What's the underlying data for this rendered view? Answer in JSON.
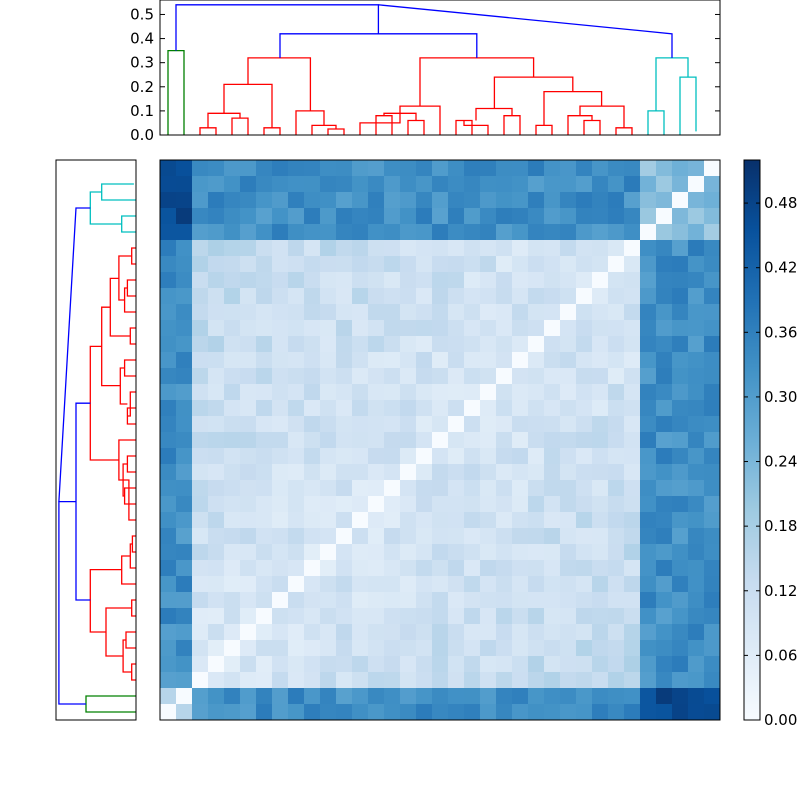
{
  "colors": {
    "cluster_a": "#ff0000",
    "cluster_b": "#00bfbf",
    "cluster_c": "#008000",
    "root_link": "#0000ff",
    "heatmap_low": "#f7fbff",
    "heatmap_high": "#08306b"
  },
  "chart_data": [
    {
      "type": "dendrogram",
      "orientation": "top",
      "title": "",
      "ylim": [
        0,
        0.56
      ],
      "yticks": [
        "0.0",
        "0.1",
        "0.2",
        "0.3",
        "0.4",
        "0.5"
      ],
      "leaf_count": 35,
      "clusters": [
        {
          "name": "green",
          "leaves": [
            0,
            1
          ],
          "merge_height": 0.35
        },
        {
          "name": "red",
          "leaves": [
            2,
            29
          ],
          "merge_height": 0.32
        },
        {
          "name": "cyan",
          "leaves": [
            30,
            34
          ],
          "merge_height": 0.32
        }
      ],
      "links": [
        {
          "x": [
            0.5,
            0.5,
            1.5,
            1.5
          ],
          "y": [
            0,
            0.35,
            0.35,
            0
          ],
          "color": "cluster_c"
        },
        {
          "x": [
            2.5,
            2.5,
            3.5,
            3.5
          ],
          "y": [
            0,
            0.03,
            0.03,
            0
          ],
          "color": "cluster_a"
        },
        {
          "x": [
            4.5,
            4.5,
            5.5,
            5.5
          ],
          "y": [
            0,
            0.07,
            0.07,
            0
          ],
          "color": "cluster_a"
        },
        {
          "x": [
            3.0,
            3.0,
            5.0,
            5.0
          ],
          "y": [
            0.03,
            0.09,
            0.09,
            0.07
          ],
          "color": "cluster_a"
        },
        {
          "x": [
            6.5,
            6.5,
            7.5,
            7.5
          ],
          "y": [
            0,
            0.03,
            0.03,
            0
          ],
          "color": "cluster_a"
        },
        {
          "x": [
            4.0,
            4.0,
            7.0,
            7.0
          ],
          "y": [
            0.09,
            0.21,
            0.21,
            0.03
          ],
          "color": "cluster_a"
        },
        {
          "x": [
            10.5,
            10.5,
            11.5,
            11.5
          ],
          "y": [
            0,
            0.025,
            0.025,
            0
          ],
          "color": "cluster_a"
        },
        {
          "x": [
            9.5,
            9.5,
            11.0,
            11.0
          ],
          "y": [
            0,
            0.04,
            0.04,
            0.025
          ],
          "color": "cluster_a"
        },
        {
          "x": [
            8.5,
            8.5,
            10.25,
            10.25
          ],
          "y": [
            0,
            0.1,
            0.1,
            0.04
          ],
          "color": "cluster_a"
        },
        {
          "x": [
            5.5,
            5.5,
            9.4,
            9.4
          ],
          "y": [
            0.21,
            0.32,
            0.32,
            0.1
          ],
          "color": "cluster_a"
        },
        {
          "x": [
            13.5,
            13.5,
            14.5,
            14.5
          ],
          "y": [
            0,
            0.08,
            0.08,
            0
          ],
          "color": "cluster_a"
        },
        {
          "x": [
            15.5,
            15.5,
            16.5,
            16.5
          ],
          "y": [
            0,
            0.06,
            0.06,
            0
          ],
          "color": "cluster_a"
        },
        {
          "x": [
            14.0,
            14.0,
            16.0,
            16.0
          ],
          "y": [
            0.08,
            0.09,
            0.09,
            0.06
          ],
          "color": "cluster_a"
        },
        {
          "x": [
            12.5,
            12.5,
            15.0,
            15.0
          ],
          "y": [
            0,
            0.05,
            0.05,
            0.09
          ],
          "color": "cluster_a"
        },
        {
          "x": [
            17.5,
            17.5,
            15.0,
            15.0
          ],
          "y": [
            0,
            0.12,
            0.12,
            0.09
          ],
          "color": "cluster_a"
        },
        {
          "x": [
            18.5,
            18.5,
            19.5,
            19.5
          ],
          "y": [
            0,
            0.06,
            0.06,
            0
          ],
          "color": "cluster_a"
        },
        {
          "x": [
            19.0,
            19.0,
            20.5,
            20.5
          ],
          "y": [
            0.06,
            0.04,
            0.04,
            0
          ],
          "color": "cluster_a"
        },
        {
          "x": [
            21.5,
            21.5,
            22.5,
            22.5
          ],
          "y": [
            0,
            0.08,
            0.08,
            0
          ],
          "color": "cluster_a"
        },
        {
          "x": [
            19.75,
            19.75,
            22.0,
            22.0
          ],
          "y": [
            0.06,
            0.11,
            0.11,
            0.08
          ],
          "color": "cluster_a"
        },
        {
          "x": [
            23.5,
            23.5,
            24.5,
            24.5
          ],
          "y": [
            0,
            0.04,
            0.04,
            0
          ],
          "color": "cluster_a"
        },
        {
          "x": [
            26.5,
            26.5,
            27.5,
            27.5
          ],
          "y": [
            0,
            0.06,
            0.06,
            0
          ],
          "color": "cluster_a"
        },
        {
          "x": [
            25.5,
            25.5,
            27.0,
            27.0
          ],
          "y": [
            0,
            0.08,
            0.08,
            0.06
          ],
          "color": "cluster_a"
        },
        {
          "x": [
            28.5,
            28.5,
            29.5,
            29.5
          ],
          "y": [
            0,
            0.03,
            0.03,
            0
          ],
          "color": "cluster_a"
        },
        {
          "x": [
            26.25,
            26.25,
            29.0,
            29.0
          ],
          "y": [
            0.08,
            0.12,
            0.12,
            0.03
          ],
          "color": "cluster_a"
        },
        {
          "x": [
            24.0,
            24.0,
            27.6,
            27.6
          ],
          "y": [
            0.04,
            0.18,
            0.18,
            0.12
          ],
          "color": "cluster_a"
        },
        {
          "x": [
            20.9,
            20.9,
            25.8,
            25.8
          ],
          "y": [
            0.11,
            0.24,
            0.24,
            0.18
          ],
          "color": "cluster_a"
        },
        {
          "x": [
            16.25,
            16.25,
            23.35,
            23.35
          ],
          "y": [
            0.12,
            0.32,
            0.32,
            0.24
          ],
          "color": "cluster_a"
        },
        {
          "x": [
            30.5,
            30.5,
            31.5,
            31.5
          ],
          "y": [
            0,
            0.1,
            0.1,
            0
          ],
          "color": "cluster_b"
        },
        {
          "x": [
            32.5,
            32.5,
            33.5,
            33.5
          ],
          "y": [
            0,
            0.24,
            0.24,
            0.015
          ],
          "color": "cluster_b"
        },
        {
          "x": [
            31.0,
            31.0,
            33.0,
            33.0
          ],
          "y": [
            0.1,
            0.32,
            0.32,
            0.24
          ],
          "color": "cluster_b"
        },
        {
          "x": [
            7.5,
            7.5,
            19.8,
            19.8
          ],
          "y": [
            0.32,
            0.42,
            0.42,
            0.32
          ],
          "color": "root_link"
        },
        {
          "x": [
            1.0,
            1.0,
            13.65,
            13.65
          ],
          "y": [
            0.35,
            0.54,
            0.54,
            0.42
          ],
          "color": "root_link"
        },
        {
          "x": [
            13.65,
            13.65,
            32.0,
            32.0
          ],
          "y": [
            0.54,
            0.54,
            0.42,
            0.32
          ],
          "color": "root_link"
        }
      ]
    },
    {
      "type": "heatmap",
      "title": "",
      "rows": 35,
      "cols": 35,
      "vmin": 0.0,
      "vmax": 0.52,
      "colormap": "Blues",
      "row_order": "matches left dendrogram leaves, top to bottom",
      "col_order": "matches top dendrogram leaves, left to right",
      "groups": [
        {
          "name": "green",
          "index_range": [
            0,
            1
          ]
        },
        {
          "name": "red",
          "index_range": [
            2,
            29
          ]
        },
        {
          "name": "cyan",
          "index_range": [
            30,
            34
          ]
        }
      ],
      "block_means": {
        "green_green": 0.18,
        "green_red": 0.33,
        "green_cyan": 0.46,
        "red_red": 0.14,
        "red_cyan": 0.33,
        "cyan_cyan": 0.22
      },
      "diagonal": 0.0
    },
    {
      "type": "colorbar",
      "range": [
        0.0,
        0.52
      ],
      "ticks": [
        "0.00",
        "0.06",
        "0.12",
        "0.18",
        "0.24",
        "0.30",
        "0.36",
        "0.42",
        "0.48"
      ]
    }
  ]
}
